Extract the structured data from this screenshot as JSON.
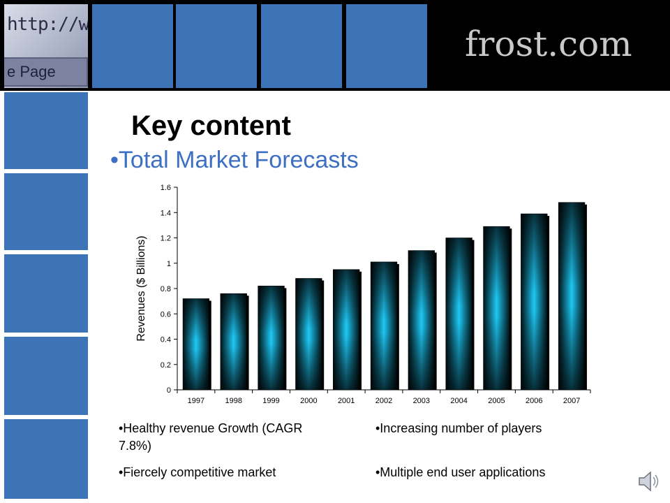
{
  "header": {
    "url_text": "http://w",
    "page_button_text": "e Page",
    "logo_text": "frost.com"
  },
  "slide": {
    "title": "Key content",
    "subtitle": "•Total Market Forecasts"
  },
  "bullets": {
    "left": [
      "•Healthy revenue Growth (CAGR 7.8%)",
      "•Fiercely competitive market"
    ],
    "right": [
      "•Increasing number of players",
      "•Multiple end user applications"
    ]
  },
  "colors": {
    "tile_blue": "#3d74b7",
    "bar_edge": "#001418",
    "bar_center": "#1ec8f5"
  },
  "icons": {
    "speaker": "speaker-icon"
  },
  "chart_data": {
    "type": "bar",
    "categories": [
      "1997",
      "1998",
      "1999",
      "2000",
      "2001",
      "2002",
      "2003",
      "2004",
      "2005",
      "2006",
      "2007"
    ],
    "values": [
      0.72,
      0.76,
      0.82,
      0.88,
      0.95,
      1.01,
      1.1,
      1.2,
      1.29,
      1.39,
      1.48
    ],
    "ylabel": "Revenues ($ Billions)",
    "ylim": [
      0,
      1.6
    ],
    "yticks": [
      "0",
      "0.2",
      "0.4",
      "0.6",
      "0.8",
      "1",
      "1.2",
      "1.4",
      "1.6"
    ],
    "grid": false,
    "legend": "none"
  }
}
